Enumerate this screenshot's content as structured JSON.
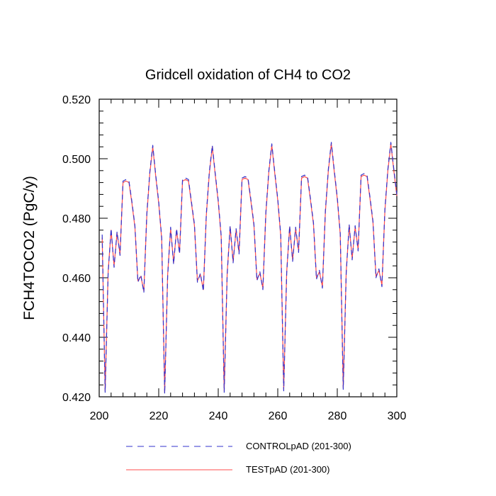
{
  "chart_data": {
    "type": "line",
    "title": "Gridcell oxidation of CH4 to CO2",
    "xlabel": "",
    "ylabel": "FCH4TOCO2  (PgC/y)",
    "xlim": [
      200,
      300
    ],
    "ylim": [
      0.42,
      0.52
    ],
    "x_ticks": [
      200,
      220,
      240,
      260,
      280,
      300
    ],
    "x_tick_labels": [
      "200",
      "220",
      "240",
      "260",
      "280",
      "300"
    ],
    "y_ticks": [
      0.42,
      0.44,
      0.46,
      0.48,
      0.5,
      0.52
    ],
    "y_tick_labels": [
      "0.420",
      "0.440",
      "0.460",
      "0.480",
      "0.500",
      "0.520"
    ],
    "x": [
      201,
      202,
      203,
      204,
      205,
      206,
      207,
      208,
      209,
      210,
      211,
      212,
      213,
      214,
      215,
      216,
      217,
      218,
      219,
      220,
      221,
      222,
      223,
      224,
      225,
      226,
      227,
      228,
      229,
      230,
      231,
      232,
      233,
      234,
      235,
      236,
      237,
      238,
      239,
      240,
      241,
      242,
      243,
      244,
      245,
      246,
      247,
      248,
      249,
      250,
      251,
      252,
      253,
      254,
      255,
      256,
      257,
      258,
      259,
      260,
      261,
      262,
      263,
      264,
      265,
      266,
      267,
      268,
      269,
      270,
      271,
      272,
      273,
      274,
      275,
      276,
      277,
      278,
      279,
      280,
      281,
      282,
      283,
      284,
      285,
      286,
      287,
      288,
      289,
      290,
      291,
      292,
      293,
      294,
      295,
      296,
      297,
      298,
      299,
      300
    ],
    "series": [
      {
        "name": "CONTROLpAD (201-300)",
        "color": "#3333cc",
        "style": "dashed",
        "values": [
          0.4745,
          0.4215,
          0.4615,
          0.4765,
          0.4635,
          0.4755,
          0.4675,
          0.4925,
          0.493,
          0.4925,
          0.4855,
          0.4775,
          0.4585,
          0.461,
          0.455,
          0.4815,
          0.4955,
          0.5045,
          0.4945,
          0.4855,
          0.4735,
          0.421,
          0.4605,
          0.477,
          0.4645,
          0.4765,
          0.468,
          0.493,
          0.4935,
          0.493,
          0.4855,
          0.478,
          0.4585,
          0.4615,
          0.4555,
          0.4815,
          0.4955,
          0.5045,
          0.495,
          0.486,
          0.474,
          0.4215,
          0.461,
          0.4775,
          0.465,
          0.4765,
          0.468,
          0.4935,
          0.494,
          0.4935,
          0.486,
          0.478,
          0.459,
          0.462,
          0.456,
          0.482,
          0.496,
          0.505,
          0.4955,
          0.4865,
          0.4745,
          0.422,
          0.4615,
          0.4775,
          0.4655,
          0.477,
          0.4685,
          0.494,
          0.4945,
          0.494,
          0.4865,
          0.4785,
          0.4595,
          0.4625,
          0.4565,
          0.4825,
          0.4965,
          0.5055,
          0.496,
          0.487,
          0.475,
          0.4225,
          0.4615,
          0.478,
          0.466,
          0.4775,
          0.469,
          0.4945,
          0.495,
          0.4945,
          0.487,
          0.479,
          0.46,
          0.463,
          0.457,
          0.483,
          0.4965,
          0.5055,
          0.4965,
          0.488
        ]
      },
      {
        "name": "TESTpAD (201-300)",
        "color": "#ff4d4d",
        "style": "solid",
        "values": [
          0.4735,
          0.422,
          0.462,
          0.476,
          0.464,
          0.475,
          0.468,
          0.492,
          0.4925,
          0.492,
          0.485,
          0.477,
          0.459,
          0.4605,
          0.4555,
          0.481,
          0.495,
          0.504,
          0.494,
          0.485,
          0.473,
          0.4215,
          0.461,
          0.4765,
          0.465,
          0.476,
          0.4685,
          0.4925,
          0.493,
          0.4925,
          0.485,
          0.4775,
          0.459,
          0.461,
          0.456,
          0.481,
          0.495,
          0.504,
          0.4945,
          0.4855,
          0.4735,
          0.422,
          0.4615,
          0.477,
          0.4655,
          0.476,
          0.4685,
          0.493,
          0.4935,
          0.493,
          0.4855,
          0.4775,
          0.4595,
          0.4615,
          0.4565,
          0.4815,
          0.4955,
          0.5045,
          0.495,
          0.486,
          0.474,
          0.4225,
          0.462,
          0.477,
          0.466,
          0.4765,
          0.469,
          0.4935,
          0.494,
          0.4935,
          0.486,
          0.478,
          0.46,
          0.462,
          0.457,
          0.482,
          0.496,
          0.505,
          0.4955,
          0.4865,
          0.4745,
          0.423,
          0.462,
          0.4775,
          0.4665,
          0.477,
          0.4695,
          0.494,
          0.4945,
          0.494,
          0.4865,
          0.4785,
          0.4605,
          0.4625,
          0.4575,
          0.4825,
          0.496,
          0.505,
          0.496,
          0.4875
        ]
      }
    ],
    "legend": {
      "placement": "bottom",
      "entries": [
        "CONTROLpAD (201-300)",
        "TESTpAD (201-300)"
      ]
    },
    "grid": false
  }
}
